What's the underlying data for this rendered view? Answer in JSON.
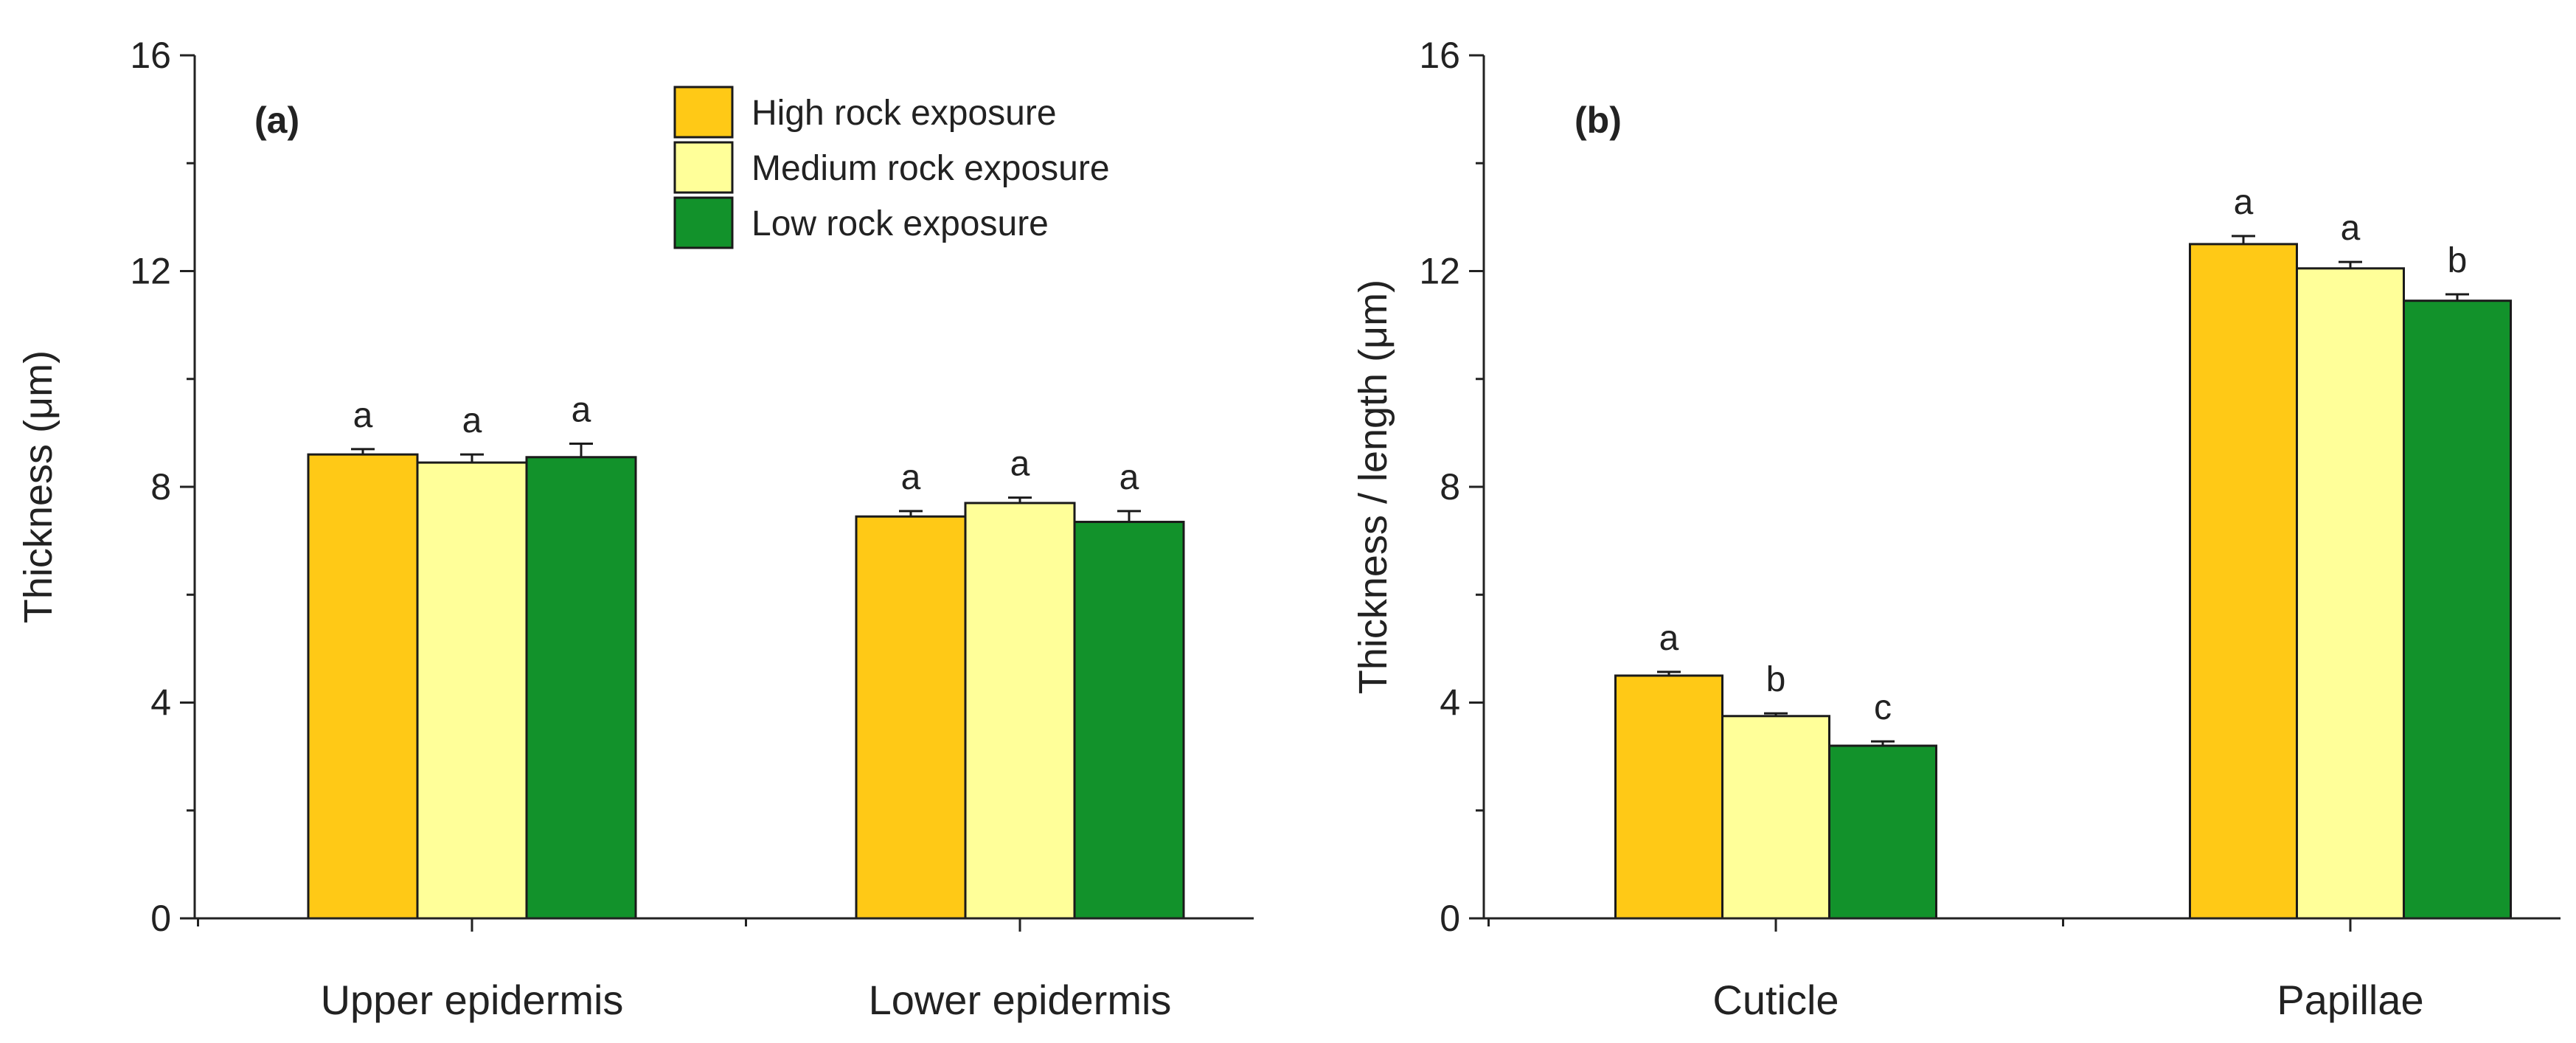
{
  "colors": {
    "high": "#FFC916",
    "medium": "#FFFF99",
    "low": "#12922B",
    "axis": "#222222",
    "bar_edge": "#1a1a1a"
  },
  "chart_data": [
    {
      "type": "bar",
      "panel": "(a)",
      "categories": [
        "Upper epidermis",
        "Lower epidermis"
      ],
      "ylabel": "Thickness (μm)",
      "xlabel": "",
      "ylim": [
        0,
        16
      ],
      "yticks": [
        "0",
        "4",
        "8",
        "12",
        "16"
      ],
      "legend_position": "top-right",
      "series": [
        {
          "name": "High rock exposure",
          "color_key": "high",
          "values": [
            8.6,
            7.45
          ],
          "errors": [
            0.1,
            0.1
          ],
          "sig": [
            "a",
            "a"
          ]
        },
        {
          "name": "Medium rock exposure",
          "color_key": "medium",
          "values": [
            8.45,
            7.7
          ],
          "errors": [
            0.15,
            0.1
          ],
          "sig": [
            "a",
            "a"
          ]
        },
        {
          "name": "Low rock exposure",
          "color_key": "low",
          "values": [
            8.55,
            7.35
          ],
          "errors": [
            0.25,
            0.2
          ],
          "sig": [
            "a",
            "a"
          ]
        }
      ]
    },
    {
      "type": "bar",
      "panel": "(b)",
      "categories": [
        "Cuticle",
        "Papillae"
      ],
      "ylabel": "Thickness / length (μm)",
      "xlabel": "",
      "ylim": [
        0,
        16
      ],
      "yticks": [
        "0",
        "4",
        "8",
        "12",
        "16"
      ],
      "series": [
        {
          "name": "High rock exposure",
          "color_key": "high",
          "values": [
            4.5,
            12.5
          ],
          "errors": [
            0.07,
            0.15
          ],
          "sig": [
            "a",
            "a"
          ]
        },
        {
          "name": "Medium rock exposure",
          "color_key": "medium",
          "values": [
            3.75,
            12.05
          ],
          "errors": [
            0.05,
            0.12
          ],
          "sig": [
            "b",
            "a"
          ]
        },
        {
          "name": "Low rock exposure",
          "color_key": "low",
          "values": [
            3.2,
            11.45
          ],
          "errors": [
            0.08,
            0.12
          ],
          "sig": [
            "c",
            "b"
          ]
        }
      ]
    }
  ]
}
